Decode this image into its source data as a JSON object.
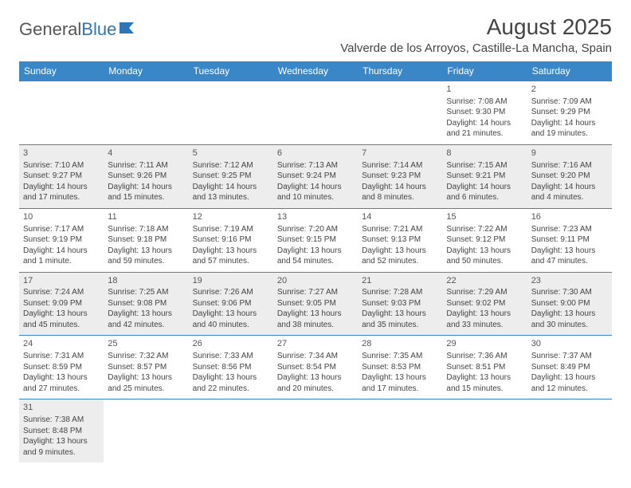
{
  "logo": {
    "text1": "General",
    "text2": "Blue"
  },
  "header": {
    "title": "August 2025",
    "location": "Valverde de los Arroyos, Castille-La Mancha, Spain"
  },
  "colors": {
    "header_bg": "#3a87c7",
    "header_text": "#ffffff",
    "cell_border": "#3a87c7",
    "shaded_bg": "#ededed",
    "text": "#444444"
  },
  "days": [
    "Sunday",
    "Monday",
    "Tuesday",
    "Wednesday",
    "Thursday",
    "Friday",
    "Saturday"
  ],
  "weeks": [
    [
      {
        "n": "",
        "lines": []
      },
      {
        "n": "",
        "lines": []
      },
      {
        "n": "",
        "lines": []
      },
      {
        "n": "",
        "lines": []
      },
      {
        "n": "",
        "lines": []
      },
      {
        "n": "1",
        "lines": [
          "Sunrise: 7:08 AM",
          "Sunset: 9:30 PM",
          "Daylight: 14 hours",
          "and 21 minutes."
        ]
      },
      {
        "n": "2",
        "lines": [
          "Sunrise: 7:09 AM",
          "Sunset: 9:29 PM",
          "Daylight: 14 hours",
          "and 19 minutes."
        ]
      }
    ],
    [
      {
        "n": "3",
        "lines": [
          "Sunrise: 7:10 AM",
          "Sunset: 9:27 PM",
          "Daylight: 14 hours",
          "and 17 minutes."
        ]
      },
      {
        "n": "4",
        "lines": [
          "Sunrise: 7:11 AM",
          "Sunset: 9:26 PM",
          "Daylight: 14 hours",
          "and 15 minutes."
        ]
      },
      {
        "n": "5",
        "lines": [
          "Sunrise: 7:12 AM",
          "Sunset: 9:25 PM",
          "Daylight: 14 hours",
          "and 13 minutes."
        ]
      },
      {
        "n": "6",
        "lines": [
          "Sunrise: 7:13 AM",
          "Sunset: 9:24 PM",
          "Daylight: 14 hours",
          "and 10 minutes."
        ]
      },
      {
        "n": "7",
        "lines": [
          "Sunrise: 7:14 AM",
          "Sunset: 9:23 PM",
          "Daylight: 14 hours",
          "and 8 minutes."
        ]
      },
      {
        "n": "8",
        "lines": [
          "Sunrise: 7:15 AM",
          "Sunset: 9:21 PM",
          "Daylight: 14 hours",
          "and 6 minutes."
        ]
      },
      {
        "n": "9",
        "lines": [
          "Sunrise: 7:16 AM",
          "Sunset: 9:20 PM",
          "Daylight: 14 hours",
          "and 4 minutes."
        ]
      }
    ],
    [
      {
        "n": "10",
        "lines": [
          "Sunrise: 7:17 AM",
          "Sunset: 9:19 PM",
          "Daylight: 14 hours",
          "and 1 minute."
        ]
      },
      {
        "n": "11",
        "lines": [
          "Sunrise: 7:18 AM",
          "Sunset: 9:18 PM",
          "Daylight: 13 hours",
          "and 59 minutes."
        ]
      },
      {
        "n": "12",
        "lines": [
          "Sunrise: 7:19 AM",
          "Sunset: 9:16 PM",
          "Daylight: 13 hours",
          "and 57 minutes."
        ]
      },
      {
        "n": "13",
        "lines": [
          "Sunrise: 7:20 AM",
          "Sunset: 9:15 PM",
          "Daylight: 13 hours",
          "and 54 minutes."
        ]
      },
      {
        "n": "14",
        "lines": [
          "Sunrise: 7:21 AM",
          "Sunset: 9:13 PM",
          "Daylight: 13 hours",
          "and 52 minutes."
        ]
      },
      {
        "n": "15",
        "lines": [
          "Sunrise: 7:22 AM",
          "Sunset: 9:12 PM",
          "Daylight: 13 hours",
          "and 50 minutes."
        ]
      },
      {
        "n": "16",
        "lines": [
          "Sunrise: 7:23 AM",
          "Sunset: 9:11 PM",
          "Daylight: 13 hours",
          "and 47 minutes."
        ]
      }
    ],
    [
      {
        "n": "17",
        "lines": [
          "Sunrise: 7:24 AM",
          "Sunset: 9:09 PM",
          "Daylight: 13 hours",
          "and 45 minutes."
        ]
      },
      {
        "n": "18",
        "lines": [
          "Sunrise: 7:25 AM",
          "Sunset: 9:08 PM",
          "Daylight: 13 hours",
          "and 42 minutes."
        ]
      },
      {
        "n": "19",
        "lines": [
          "Sunrise: 7:26 AM",
          "Sunset: 9:06 PM",
          "Daylight: 13 hours",
          "and 40 minutes."
        ]
      },
      {
        "n": "20",
        "lines": [
          "Sunrise: 7:27 AM",
          "Sunset: 9:05 PM",
          "Daylight: 13 hours",
          "and 38 minutes."
        ]
      },
      {
        "n": "21",
        "lines": [
          "Sunrise: 7:28 AM",
          "Sunset: 9:03 PM",
          "Daylight: 13 hours",
          "and 35 minutes."
        ]
      },
      {
        "n": "22",
        "lines": [
          "Sunrise: 7:29 AM",
          "Sunset: 9:02 PM",
          "Daylight: 13 hours",
          "and 33 minutes."
        ]
      },
      {
        "n": "23",
        "lines": [
          "Sunrise: 7:30 AM",
          "Sunset: 9:00 PM",
          "Daylight: 13 hours",
          "and 30 minutes."
        ]
      }
    ],
    [
      {
        "n": "24",
        "lines": [
          "Sunrise: 7:31 AM",
          "Sunset: 8:59 PM",
          "Daylight: 13 hours",
          "and 27 minutes."
        ]
      },
      {
        "n": "25",
        "lines": [
          "Sunrise: 7:32 AM",
          "Sunset: 8:57 PM",
          "Daylight: 13 hours",
          "and 25 minutes."
        ]
      },
      {
        "n": "26",
        "lines": [
          "Sunrise: 7:33 AM",
          "Sunset: 8:56 PM",
          "Daylight: 13 hours",
          "and 22 minutes."
        ]
      },
      {
        "n": "27",
        "lines": [
          "Sunrise: 7:34 AM",
          "Sunset: 8:54 PM",
          "Daylight: 13 hours",
          "and 20 minutes."
        ]
      },
      {
        "n": "28",
        "lines": [
          "Sunrise: 7:35 AM",
          "Sunset: 8:53 PM",
          "Daylight: 13 hours",
          "and 17 minutes."
        ]
      },
      {
        "n": "29",
        "lines": [
          "Sunrise: 7:36 AM",
          "Sunset: 8:51 PM",
          "Daylight: 13 hours",
          "and 15 minutes."
        ]
      },
      {
        "n": "30",
        "lines": [
          "Sunrise: 7:37 AM",
          "Sunset: 8:49 PM",
          "Daylight: 13 hours",
          "and 12 minutes."
        ]
      }
    ],
    [
      {
        "n": "31",
        "lines": [
          "Sunrise: 7:38 AM",
          "Sunset: 8:48 PM",
          "Daylight: 13 hours",
          "and 9 minutes."
        ]
      },
      {
        "n": "",
        "lines": []
      },
      {
        "n": "",
        "lines": []
      },
      {
        "n": "",
        "lines": []
      },
      {
        "n": "",
        "lines": []
      },
      {
        "n": "",
        "lines": []
      },
      {
        "n": "",
        "lines": []
      }
    ]
  ]
}
